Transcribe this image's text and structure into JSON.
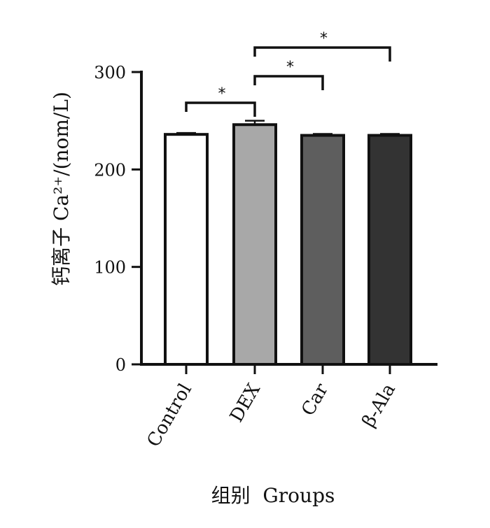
{
  "chart_data": {
    "type": "bar",
    "categories": [
      "Control",
      "DEX",
      "Car",
      "β-Ala"
    ],
    "values": [
      236,
      246,
      235,
      235
    ],
    "errors": [
      1.5,
      4,
      1.5,
      1.5
    ],
    "ylim": [
      0,
      300
    ],
    "yticks": [
      0,
      100,
      200,
      300
    ],
    "ylabel": "钙离子 Ca²⁺/(nom/L)",
    "xlabel": "组别  Groups",
    "grid": false,
    "colors": [
      "#ffffff",
      "#a8a8a8",
      "#5e5e5e",
      "#333333"
    ],
    "significance": [
      {
        "from": 0,
        "to": 1,
        "label": "*"
      },
      {
        "from": 1,
        "to": 2,
        "label": "*"
      },
      {
        "from": 1,
        "to": 3,
        "label": "*"
      }
    ]
  }
}
